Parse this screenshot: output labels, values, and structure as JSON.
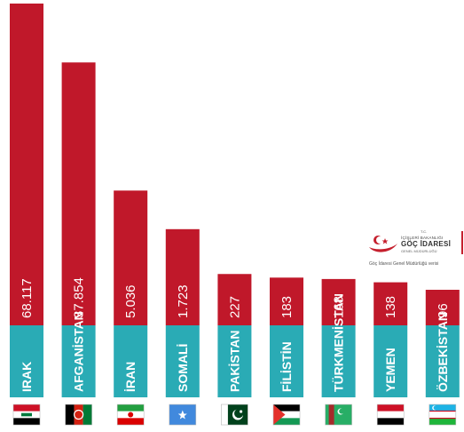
{
  "chart_data": {
    "type": "bar",
    "categories": [
      "IRAK",
      "AFGANİSTAN",
      "İRAN",
      "SOMALİ",
      "PAKİSTAN",
      "FİLİSTİN",
      "TÜRKMENİSTAN",
      "YEMEN",
      "ÖZBEKİSTAN"
    ],
    "value_labels": [
      "68.117",
      "37.854",
      "5.036",
      "1.723",
      "227",
      "183",
      "168",
      "138",
      "96"
    ],
    "values": [
      68117,
      37854,
      5036,
      1723,
      227,
      183,
      168,
      138,
      96
    ],
    "title": "",
    "xlabel": "",
    "ylabel": "",
    "scale": "non-linear (pictorial)",
    "grid": false,
    "legend": "none",
    "flags": [
      "iraq-flag-icon",
      "afghanistan-flag-icon",
      "iran-flag-icon",
      "somalia-flag-icon",
      "pakistan-flag-icon",
      "palestine-flag-icon",
      "turkmenistan-flag-icon",
      "yemen-flag-icon",
      "uzbekistan-flag-icon"
    ]
  },
  "colors": {
    "bar_top": "#c0182a",
    "bar_base": "#2aabb5",
    "text": "#ffffff"
  },
  "logo": {
    "line_tc": "T.C.",
    "line1": "İÇİŞLERİ BAKANLIĞI",
    "line2": "GÖÇ İDARESİ",
    "line3": "GENEL MÜDÜRLÜĞÜ",
    "source": "Göç İdaresi Genel Müdürlüğü verisi"
  }
}
